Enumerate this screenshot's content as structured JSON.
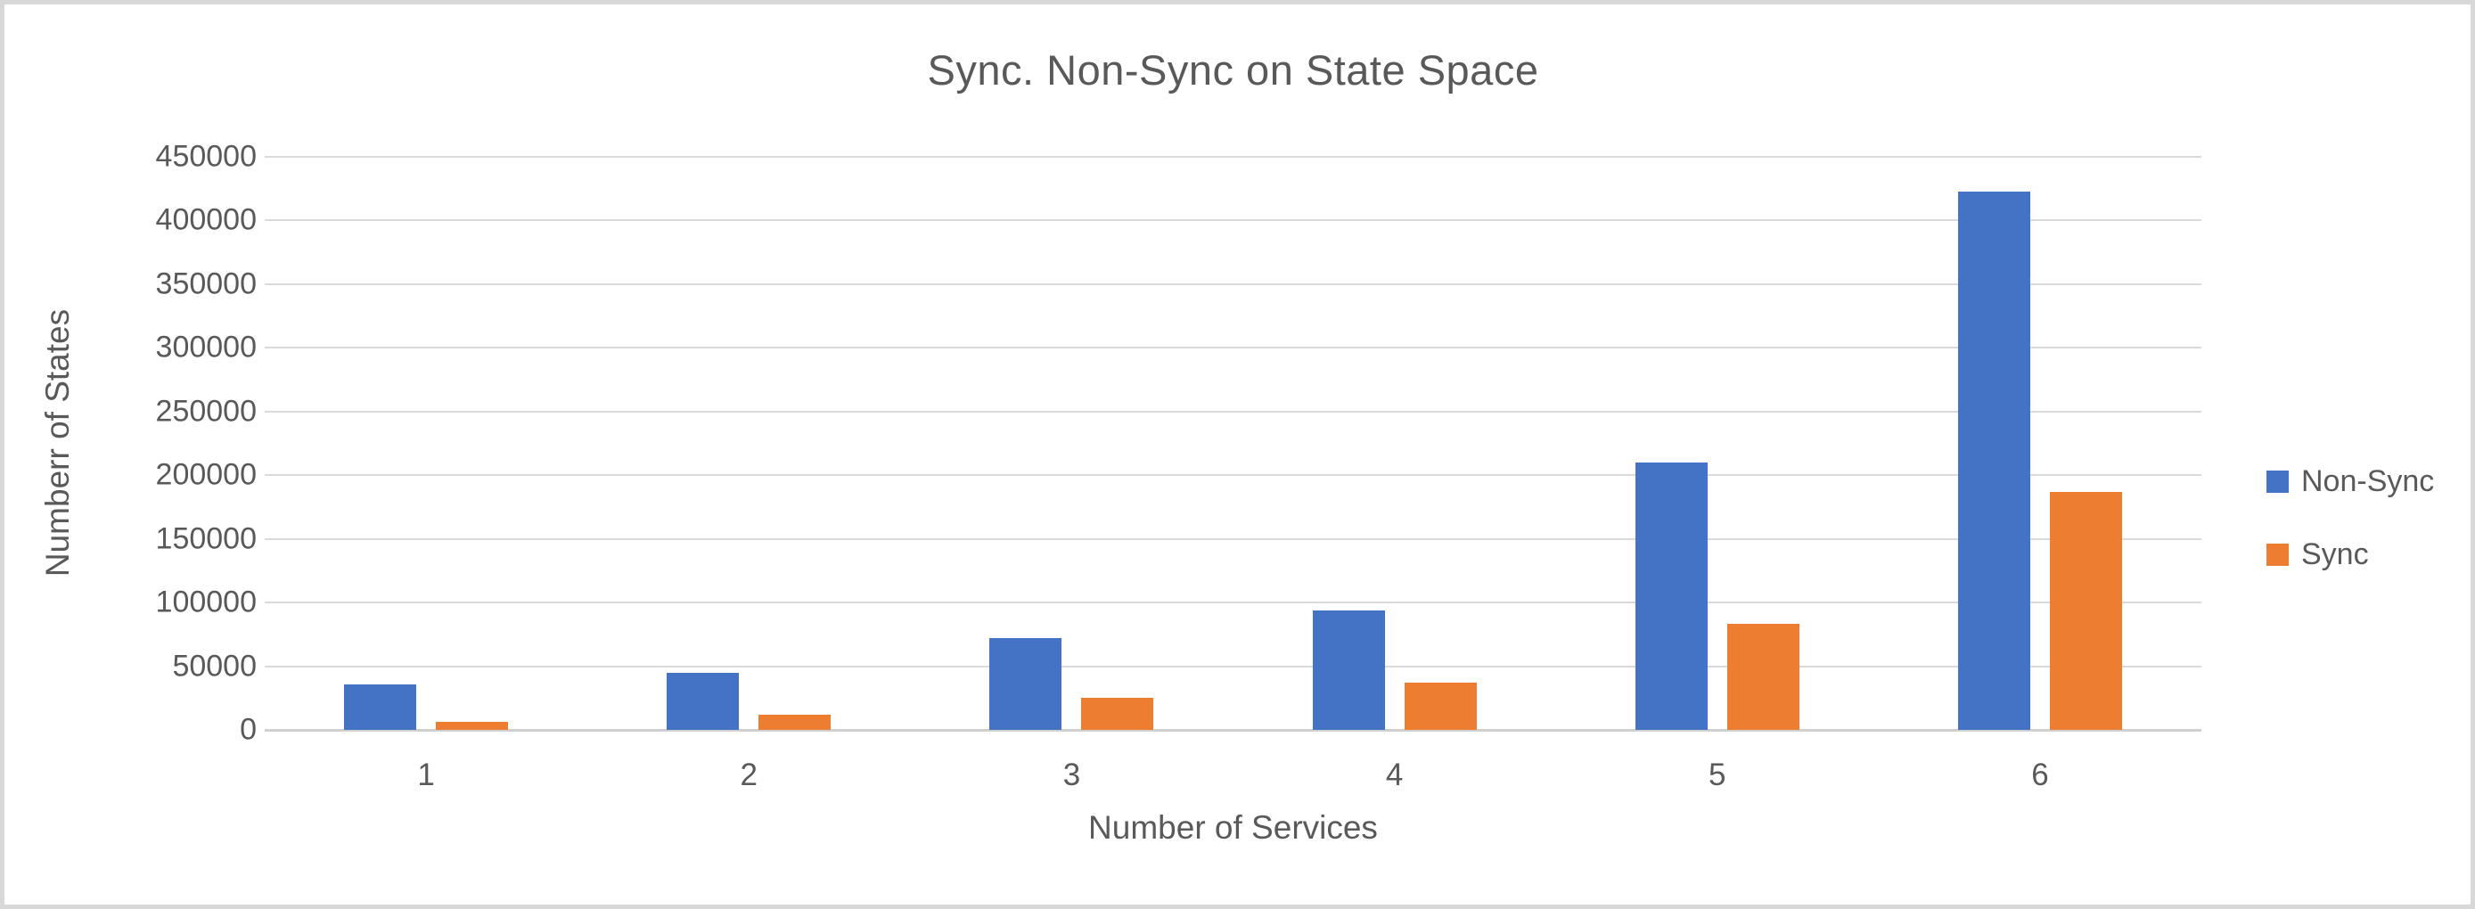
{
  "chart_data": {
    "type": "bar",
    "title": "Sync. Non-Sync on State Space",
    "xlabel": "Number of Services",
    "ylabel": "Numberr of States",
    "categories": [
      "1",
      "2",
      "3",
      "4",
      "5",
      "6"
    ],
    "series": [
      {
        "name": "Non-Sync",
        "color": "#4472C4",
        "values": [
          36000,
          45000,
          72000,
          94000,
          210000,
          423000
        ]
      },
      {
        "name": "Sync",
        "color": "#ED7D31",
        "values": [
          6000,
          12000,
          25000,
          37000,
          83000,
          187000
        ]
      }
    ],
    "ylim": [
      0,
      450000
    ],
    "ytick_step": 50000,
    "yticks": [
      0,
      50000,
      100000,
      150000,
      200000,
      250000,
      300000,
      350000,
      400000,
      450000
    ],
    "grid": true,
    "legend_position": "right",
    "colors": {
      "text": "#595959",
      "gridline": "#dadada",
      "frame_border": "#d8d8d8",
      "background": "#ffffff"
    }
  }
}
